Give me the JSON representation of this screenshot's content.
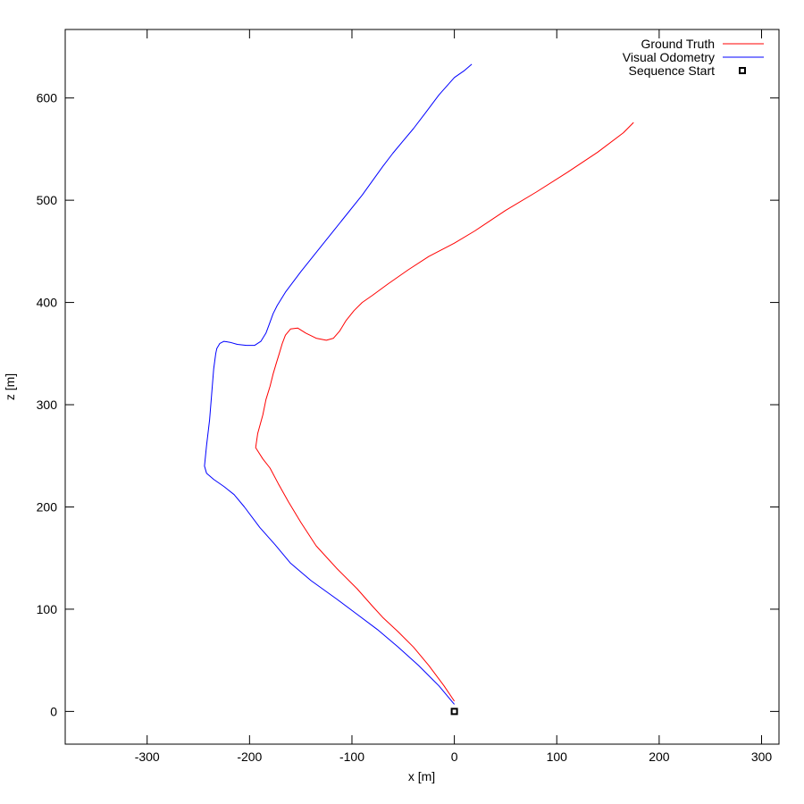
{
  "chart_data": {
    "type": "line",
    "xlabel": "x [m]",
    "ylabel": "z [m]",
    "xlim": [
      -380,
      317
    ],
    "ylim": [
      -32,
      667
    ],
    "xticks": [
      -300,
      -200,
      -100,
      0,
      100,
      200,
      300
    ],
    "yticks": [
      0,
      100,
      200,
      300,
      400,
      500,
      600
    ],
    "grid": false,
    "legend_position": "top-right",
    "series": [
      {
        "name": "Ground Truth",
        "color": "#ff0000",
        "x": [
          0,
          -10,
          -25,
          -40,
          -55,
          -70,
          -80,
          -95,
          -115,
          -135,
          -150,
          -162,
          -172,
          -180,
          -187,
          -194,
          -192,
          -187,
          -184,
          -180,
          -177,
          -174,
          -171,
          -168,
          -165,
          -160,
          -153,
          -145,
          -135,
          -125,
          -118,
          -112,
          -106,
          -98,
          -90,
          -80,
          -65,
          -45,
          -25,
          0,
          20,
          50,
          80,
          110,
          140,
          165,
          175
        ],
        "y": [
          10,
          25,
          45,
          63,
          78,
          92,
          103,
          120,
          140,
          162,
          185,
          205,
          223,
          238,
          247,
          258,
          272,
          290,
          305,
          318,
          330,
          340,
          350,
          360,
          368,
          374,
          375,
          370,
          365,
          363,
          365,
          372,
          382,
          392,
          400,
          407,
          418,
          432,
          445,
          458,
          470,
          490,
          508,
          527,
          547,
          566,
          576
        ]
      },
      {
        "name": "Visual Odometry",
        "color": "#0000ff",
        "x": [
          0,
          -15,
          -35,
          -55,
          -75,
          -95,
          -115,
          -140,
          -160,
          -175,
          -190,
          -205,
          -215,
          -225,
          -235,
          -242,
          -244,
          -242,
          -239,
          -237,
          -235,
          -233,
          -232,
          -229,
          -225,
          -219,
          -212,
          -203,
          -195,
          -189,
          -184,
          -181,
          -177,
          -173,
          -165,
          -150,
          -130,
          -110,
          -90,
          -70,
          -60,
          -50,
          -40,
          -30,
          -15,
          0,
          10,
          17
        ],
        "y": [
          7,
          25,
          45,
          63,
          80,
          95,
          110,
          128,
          145,
          163,
          180,
          200,
          212,
          220,
          227,
          233,
          240,
          260,
          285,
          310,
          335,
          350,
          355,
          360,
          362,
          361,
          359,
          358,
          358,
          362,
          370,
          378,
          389,
          397,
          410,
          430,
          455,
          480,
          505,
          533,
          546,
          558,
          570,
          583,
          603,
          620,
          627,
          633
        ]
      }
    ],
    "markers": [
      {
        "name": "Sequence Start",
        "x": 0,
        "y": 0,
        "shape": "open-square",
        "color": "#000000"
      }
    ]
  }
}
